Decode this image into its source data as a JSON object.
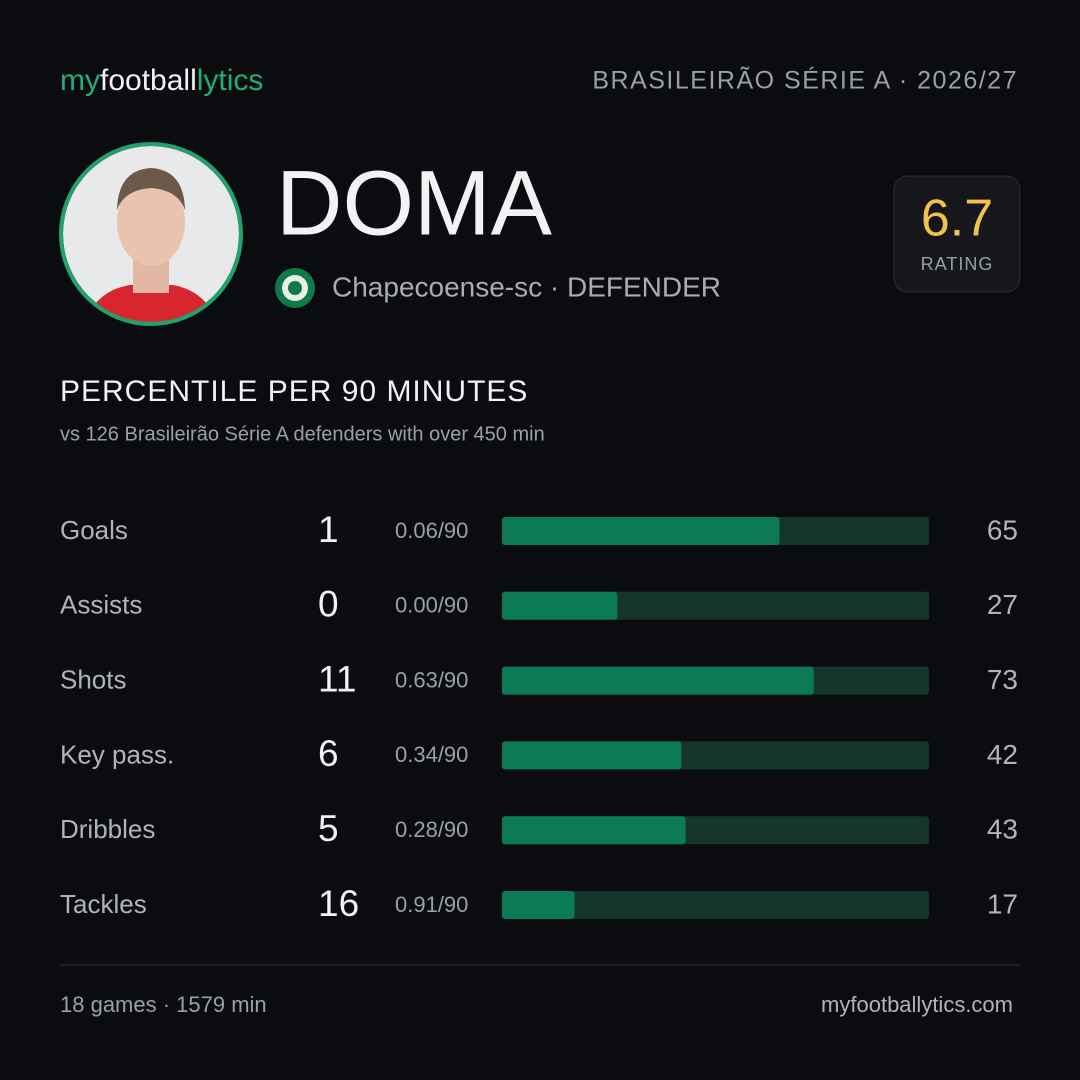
{
  "brand": {
    "parts": [
      "my",
      "football",
      "lytics"
    ]
  },
  "header": {
    "league": "BRASILEIRÃO SÉRIE A · 2026/27"
  },
  "player": {
    "name": "DOMA",
    "team_position": "Chapecoense-sc · DEFENDER",
    "rating": 6.7,
    "rating_label": "RATING"
  },
  "section": {
    "title": "PERCENTILE PER 90 MINUTES",
    "subtitle": "vs 126 Brasileirão Série A defenders with over 450 min"
  },
  "stats": {
    "xlim": [
      0,
      100
    ],
    "rows": [
      {
        "label": "Goals",
        "total": 1,
        "per90": "0.06/90",
        "percentile": 65
      },
      {
        "label": "Assists",
        "total": 0,
        "per90": "0.00/90",
        "percentile": 27
      },
      {
        "label": "Shots",
        "total": 11,
        "per90": "0.63/90",
        "percentile": 73
      },
      {
        "label": "Key pass.",
        "total": 6,
        "per90": "0.34/90",
        "percentile": 42
      },
      {
        "label": "Dribbles",
        "total": 5,
        "per90": "0.28/90",
        "percentile": 43
      },
      {
        "label": "Tackles",
        "total": 16,
        "per90": "0.91/90",
        "percentile": 17
      }
    ]
  },
  "footer": {
    "summary": "18 games · 1579 min",
    "site": "myfootballytics.com"
  }
}
